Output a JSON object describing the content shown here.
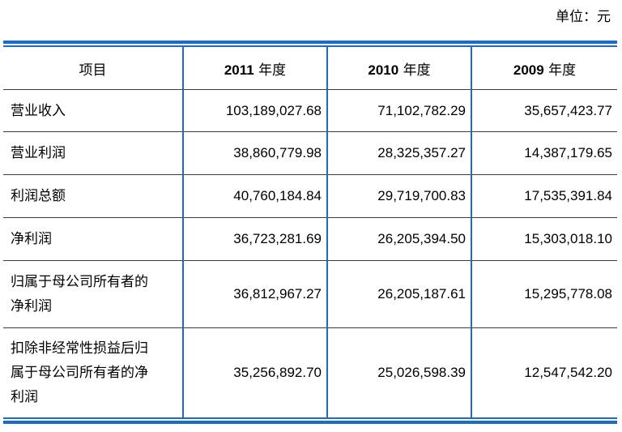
{
  "unit": "单位：元",
  "header": {
    "item": "项目",
    "years": [
      {
        "year": "2011",
        "suffix": " 年度"
      },
      {
        "year": "2010",
        "suffix": " 年度"
      },
      {
        "year": "2009",
        "suffix": " 年度"
      }
    ]
  },
  "rows": [
    {
      "label": "营业收入",
      "values": [
        "103,189,027.68",
        "71,102,782.29",
        "35,657,423.77"
      ]
    },
    {
      "label": "营业利润",
      "values": [
        "38,860,779.98",
        "28,325,357.27",
        "14,387,179.65"
      ]
    },
    {
      "label": "利润总额",
      "values": [
        "40,760,184.84",
        "29,719,700.83",
        "17,535,391.84"
      ]
    },
    {
      "label": "净利润",
      "values": [
        "36,723,281.69",
        "26,205,394.50",
        "15,303,018.10"
      ]
    },
    {
      "label_lines": [
        "归属于母公司所有者的",
        "净利润"
      ],
      "values": [
        "36,812,967.27",
        "26,205,187.61",
        "15,295,778.08"
      ]
    },
    {
      "label_lines": [
        "扣除非经常性损益后归",
        "属于母公司所有者的净",
        "利润"
      ],
      "values": [
        "35,256,892.70",
        "25,026,598.39",
        "12,547,542.20"
      ]
    }
  ],
  "colors": {
    "rule": "#1a6cc8",
    "row_border": "#3b3b3b"
  }
}
